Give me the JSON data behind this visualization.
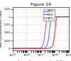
{
  "title": "Figure 19",
  "xlabel": "Annealing parameter A (h)",
  "ylabel": "Recrystallisation rate",
  "series": [
    {
      "label": "80%",
      "color": "#bb44cc",
      "n": 5.0,
      "t50": 2e-07
    },
    {
      "label": "60%",
      "color": "#4466ff",
      "n": 5.0,
      "t50": 4e-07
    },
    {
      "label": "40%",
      "color": "#ff2222",
      "n": 5.0,
      "t50": 1e-06
    }
  ],
  "xlim_log": [
    -9,
    -5
  ],
  "ylim": [
    -0.05,
    1.3
  ],
  "yticks": [
    0,
    0.25,
    0.5,
    0.75,
    1.0,
    1.25
  ],
  "ytick_labels": [
    "0",
    "0,25",
    "0,50",
    "0,75",
    "1",
    "1,25"
  ],
  "background_color": "#ffffff",
  "grid_color": "#cccccc",
  "title_fontsize": 4.5,
  "label_fontsize": 3.5,
  "tick_fontsize": 3.0
}
